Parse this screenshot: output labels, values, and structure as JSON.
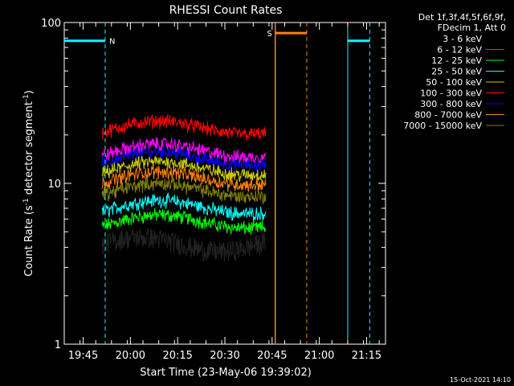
{
  "chart_data": {
    "type": "line",
    "title": "RHESSI Count Rates",
    "xlabel": "Start Time (23-May-06 19:39:02)",
    "ylabel_main": "Count Rate (s",
    "ylabel_sup1": "-1",
    "ylabel_mid": " detector segment",
    "ylabel_sup2": "-1",
    "ylabel_end": ")",
    "y_scale": "log",
    "ylim": [
      1,
      100
    ],
    "xlim_minutes_after_1939": [
      0,
      102
    ],
    "x_tick_labels": [
      "19:45",
      "20:00",
      "20:15",
      "20:30",
      "20:45",
      "21:00",
      "21:15"
    ],
    "x_tick_minutes_after_1939": [
      6,
      21,
      36,
      51,
      66,
      81,
      96
    ],
    "y_tick_labels": [
      "1",
      "10",
      "100"
    ],
    "y_tick_values": [
      1,
      10,
      100
    ],
    "grid": false,
    "data_window_minutes_after_1939": [
      12,
      64
    ],
    "legend_placement": "right",
    "legend_header_line1": "Det 1f,3f,4f,5f,6f,9f,",
    "legend_header_line2": "FDecim 1, Att 0",
    "series": [
      {
        "name": "3 - 6 keV",
        "color": "#000000",
        "approx_level": 4.2
      },
      {
        "name": "6 - 12 keV",
        "color": "#ff00ff",
        "approx_level": 15.5
      },
      {
        "name": "12 - 25 keV",
        "color": "#00ff00",
        "approx_level": 5.6
      },
      {
        "name": "25 - 50 keV",
        "color": "#00ffff",
        "approx_level": 6.9
      },
      {
        "name": "50 - 100 keV",
        "color": "#cccc00",
        "approx_level": 12.0
      },
      {
        "name": "100 - 300 keV",
        "color": "#ff0000",
        "approx_level": 21.5
      },
      {
        "name": "300 - 800 keV",
        "color": "#0000ff",
        "approx_level": 13.8
      },
      {
        "name": "800 - 7000 keV",
        "color": "#ff8000",
        "approx_level": 10.4
      },
      {
        "name": "7000 - 15000 keV",
        "color": "#808000",
        "approx_level": 8.8
      }
    ],
    "annotations": {
      "night_marker_label": "N",
      "saa_marker_label": "S",
      "night_color": "#00ffff",
      "saa_color": "#ff8000",
      "night_intervals_minutes": [
        [
          0,
          13
        ],
        [
          90,
          97
        ]
      ],
      "saa_interval_minutes": [
        67,
        77
      ],
      "night_bar_level": 77,
      "saa_bar_level": 86
    },
    "footer_date": "15-Oct-2021 14:10"
  }
}
